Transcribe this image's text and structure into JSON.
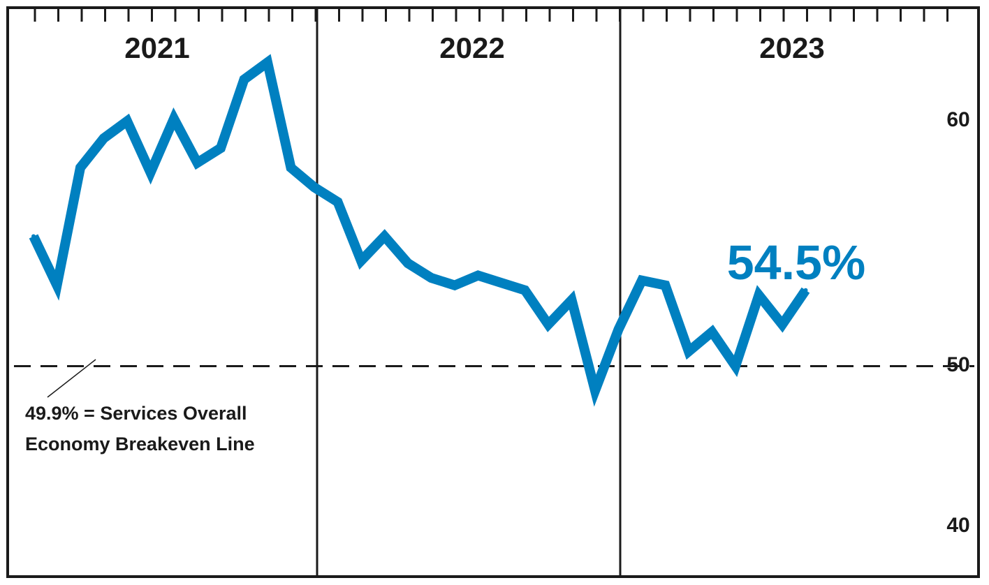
{
  "chart_data": {
    "type": "line",
    "x_unit": "month",
    "year_labels": [
      "2021",
      "2022",
      "2023"
    ],
    "x": [
      "2021-01",
      "2021-02",
      "2021-03",
      "2021-04",
      "2021-05",
      "2021-06",
      "2021-07",
      "2021-08",
      "2021-09",
      "2021-10",
      "2021-11",
      "2021-12",
      "2022-01",
      "2022-02",
      "2022-03",
      "2022-04",
      "2022-05",
      "2022-06",
      "2022-07",
      "2022-08",
      "2022-09",
      "2022-10",
      "2022-11",
      "2022-12",
      "2023-01",
      "2023-02",
      "2023-03",
      "2023-04",
      "2023-05",
      "2023-06",
      "2023-07",
      "2023-08",
      "2023-09",
      "2023-10"
    ],
    "series": [
      {
        "values": [
          55.2,
          53.2,
          58.0,
          59.2,
          59.9,
          57.8,
          60.0,
          58.2,
          58.8,
          61.6,
          62.3,
          58.0,
          57.2,
          56.6,
          54.2,
          55.2,
          54.1,
          53.5,
          53.2,
          53.6,
          53.3,
          53.0,
          51.6,
          52.6,
          48.9,
          51.4,
          53.4,
          53.2,
          50.5,
          51.3,
          49.9,
          52.8,
          51.6,
          53.0
        ],
        "color": "#0080c0"
      }
    ],
    "ylim": [
      37.5,
      64.5
    ],
    "y_ticks": [
      "40",
      "50",
      "60"
    ],
    "reference_line": {
      "value": 49.9,
      "label_lines": [
        "49.9% = Services Overall",
        "Economy Breakeven Line"
      ]
    },
    "callout": {
      "text": "54.5%",
      "color": "#0080c0"
    },
    "grid": false,
    "legend": "none"
  }
}
